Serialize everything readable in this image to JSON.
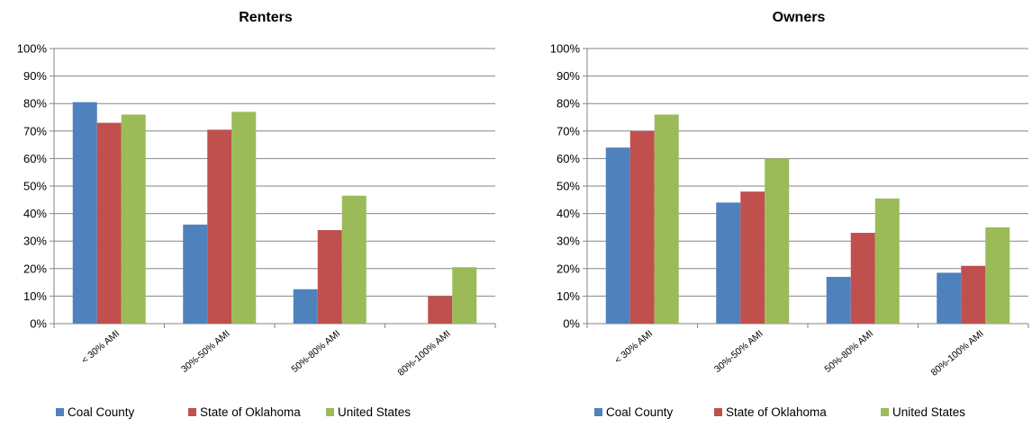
{
  "chart_data": [
    {
      "type": "bar",
      "title": "Renters",
      "categories": [
        "< 30% AMI",
        "30%-50% AMI",
        "50%-80% AMI",
        "80%-100% AMI"
      ],
      "series": [
        {
          "name": "Coal County",
          "color": "#4F81BD",
          "values": [
            80.5,
            36,
            12.5,
            0
          ]
        },
        {
          "name": "State of Oklahoma",
          "color": "#C0504D",
          "values": [
            73,
            70.5,
            34,
            10
          ]
        },
        {
          "name": "United States",
          "color": "#9BBB59",
          "values": [
            76,
            77,
            46.5,
            20.5
          ]
        }
      ],
      "yticks": [
        "0%",
        "10%",
        "20%",
        "30%",
        "40%",
        "50%",
        "60%",
        "70%",
        "80%",
        "90%",
        "100%"
      ],
      "ylim": [
        0,
        100
      ],
      "grid": true,
      "legend": "bottom"
    },
    {
      "type": "bar",
      "title": "Owners",
      "categories": [
        "< 30% AMI",
        "30%-50% AMI",
        "50%-80% AMI",
        "80%-100% AMI"
      ],
      "series": [
        {
          "name": "Coal County",
          "color": "#4F81BD",
          "values": [
            64,
            44,
            17,
            18.5
          ]
        },
        {
          "name": "State of Oklahoma",
          "color": "#C0504D",
          "values": [
            70,
            48,
            33,
            21
          ]
        },
        {
          "name": "United States",
          "color": "#9BBB59",
          "values": [
            76,
            60,
            45.5,
            35
          ]
        }
      ],
      "yticks": [
        "0%",
        "10%",
        "20%",
        "30%",
        "40%",
        "50%",
        "60%",
        "70%",
        "80%",
        "90%",
        "100%"
      ],
      "ylim": [
        0,
        100
      ],
      "grid": true,
      "legend": "bottom"
    }
  ]
}
